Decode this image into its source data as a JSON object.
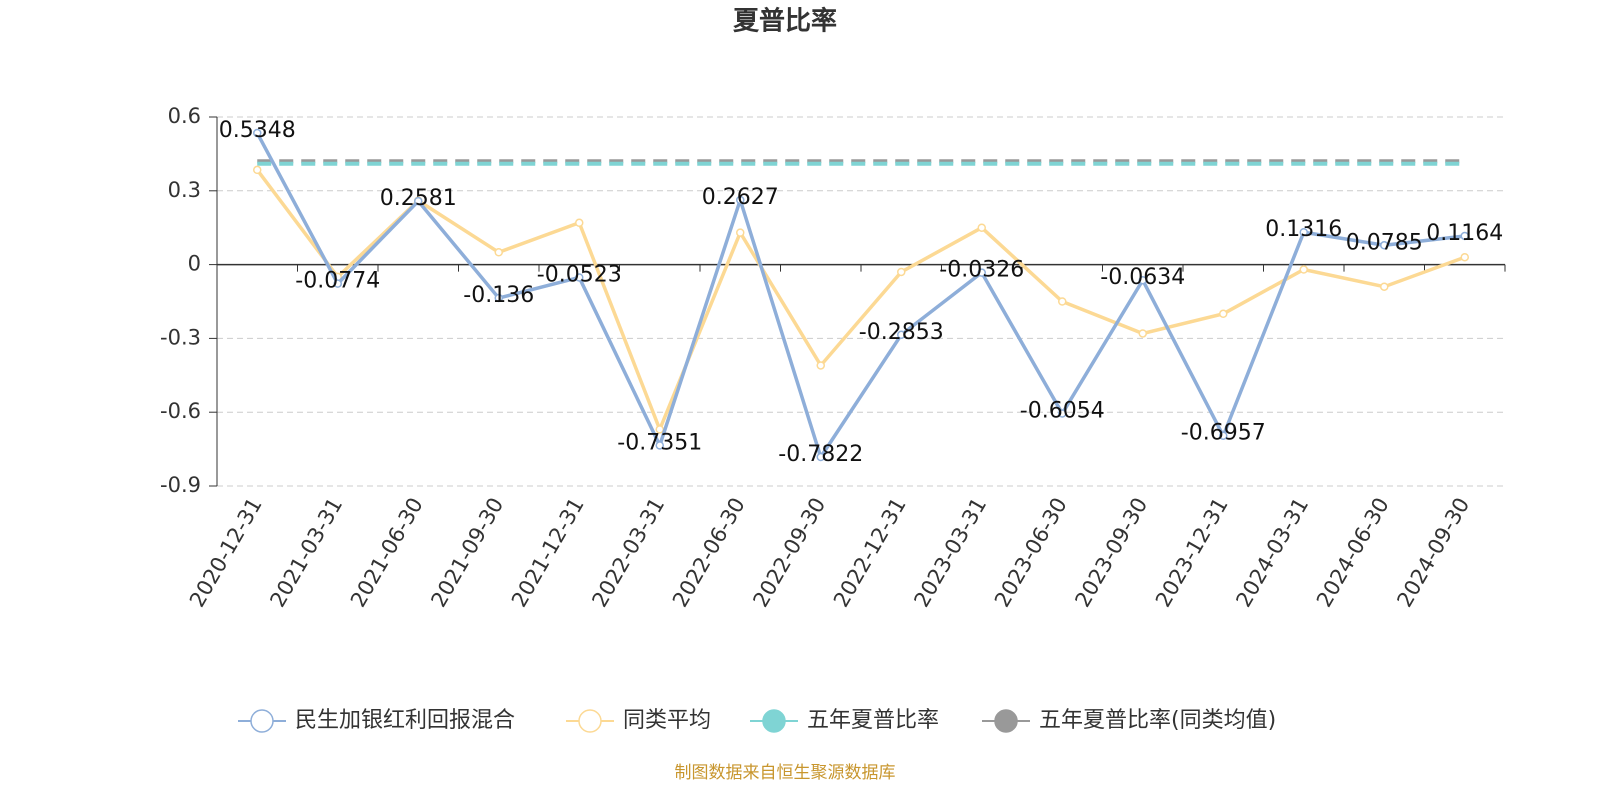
{
  "chart_data": {
    "type": "line",
    "title": "夏普比率",
    "categories": [
      "2020-12-31",
      "2021-03-31",
      "2021-06-30",
      "2021-09-30",
      "2021-12-31",
      "2022-03-31",
      "2022-06-30",
      "2022-09-30",
      "2022-12-31",
      "2023-03-31",
      "2023-06-30",
      "2023-09-30",
      "2023-12-31",
      "2024-03-31",
      "2024-06-30",
      "2024-09-30"
    ],
    "series": [
      {
        "name": "民生加银红利回报混合",
        "color": "#8eaed9",
        "values": [
          0.5348,
          -0.0774,
          0.2581,
          -0.136,
          -0.0523,
          -0.7351,
          0.2627,
          -0.7822,
          -0.2853,
          -0.0326,
          -0.6054,
          -0.0634,
          -0.6957,
          0.1316,
          0.0785,
          0.1164
        ]
      },
      {
        "name": "同类平均",
        "color": "#fcd994",
        "values": [
          0.385,
          -0.05,
          0.26,
          0.05,
          0.17,
          -0.67,
          0.13,
          -0.41,
          -0.03,
          0.15,
          -0.15,
          -0.28,
          -0.2,
          -0.02,
          -0.09,
          0.03
        ]
      },
      {
        "name": "五年夏普比率",
        "color": "#7fd4d4",
        "dashed": true,
        "values": [
          0.41,
          0.41,
          0.41,
          0.41,
          0.41,
          0.41,
          0.41,
          0.41,
          0.41,
          0.41,
          0.41,
          0.41,
          0.41,
          0.41,
          0.41,
          0.41
        ]
      },
      {
        "name": "五年夏普比率(同类均值)",
        "color": "#999999",
        "dashed": true,
        "values": [
          0.42,
          0.42,
          0.42,
          0.42,
          0.42,
          0.42,
          0.42,
          0.42,
          0.42,
          0.42,
          0.42,
          0.42,
          0.42,
          0.42,
          0.42,
          0.42
        ]
      }
    ],
    "ylim": [
      -0.9,
      0.6
    ],
    "yticks": [
      -0.9,
      -0.6,
      -0.3,
      0,
      0.3,
      0.6
    ],
    "grid": true,
    "legend": "bottom",
    "source": "制图数据来自恒生聚源数据库"
  }
}
